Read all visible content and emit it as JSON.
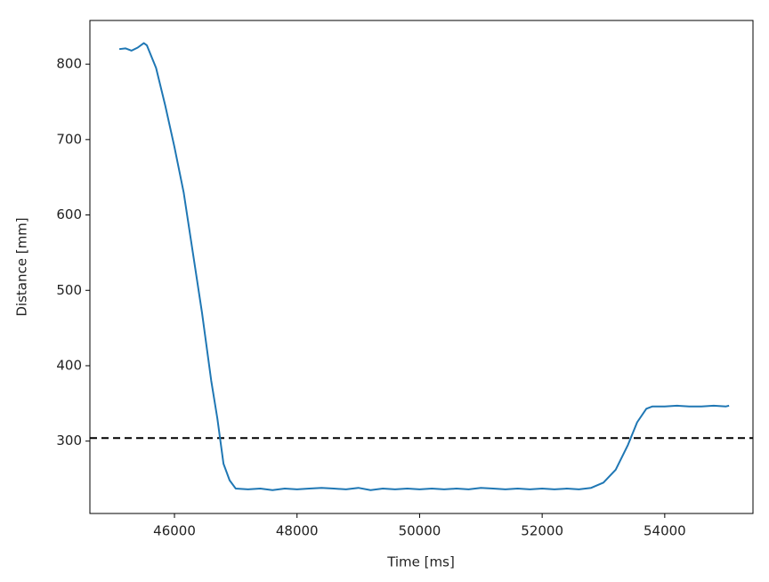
{
  "chart_data": {
    "type": "line",
    "xlabel": "Time [ms]",
    "ylabel": "Distance [mm]",
    "x": [
      45100,
      45200,
      45300,
      45400,
      45500,
      45550,
      45700,
      45850,
      46000,
      46150,
      46300,
      46450,
      46600,
      46700,
      46800,
      46900,
      47000,
      47200,
      47400,
      47600,
      47800,
      48000,
      48200,
      48400,
      48600,
      48800,
      49000,
      49200,
      49400,
      49600,
      49800,
      50000,
      50200,
      50400,
      50600,
      50800,
      51000,
      51200,
      51400,
      51600,
      51800,
      52000,
      52200,
      52400,
      52600,
      52800,
      53000,
      53200,
      53400,
      53550,
      53700,
      53800,
      54000,
      54200,
      54400,
      54600,
      54800,
      55000,
      55050
    ],
    "series": [
      {
        "color": "#1f77b4",
        "values": [
          820,
          821,
          818,
          822,
          828,
          825,
          795,
          745,
          690,
          630,
          550,
          470,
          380,
          330,
          270,
          248,
          237,
          236,
          237,
          235,
          237,
          236,
          237,
          238,
          237,
          236,
          238,
          235,
          237,
          236,
          237,
          236,
          237,
          236,
          237,
          236,
          238,
          237,
          236,
          237,
          236,
          237,
          236,
          237,
          236,
          238,
          245,
          262,
          295,
          325,
          343,
          346,
          346,
          347,
          346,
          346,
          347,
          346,
          347
        ]
      }
    ],
    "hline": {
      "value": 304,
      "color": "#000000",
      "style": "dashed"
    },
    "xlim": [
      44620,
      55440
    ],
    "ylim": [
      204,
      858
    ],
    "xticks": [
      46000,
      48000,
      50000,
      52000,
      54000
    ],
    "yticks": [
      300,
      400,
      500,
      600,
      700,
      800
    ]
  }
}
